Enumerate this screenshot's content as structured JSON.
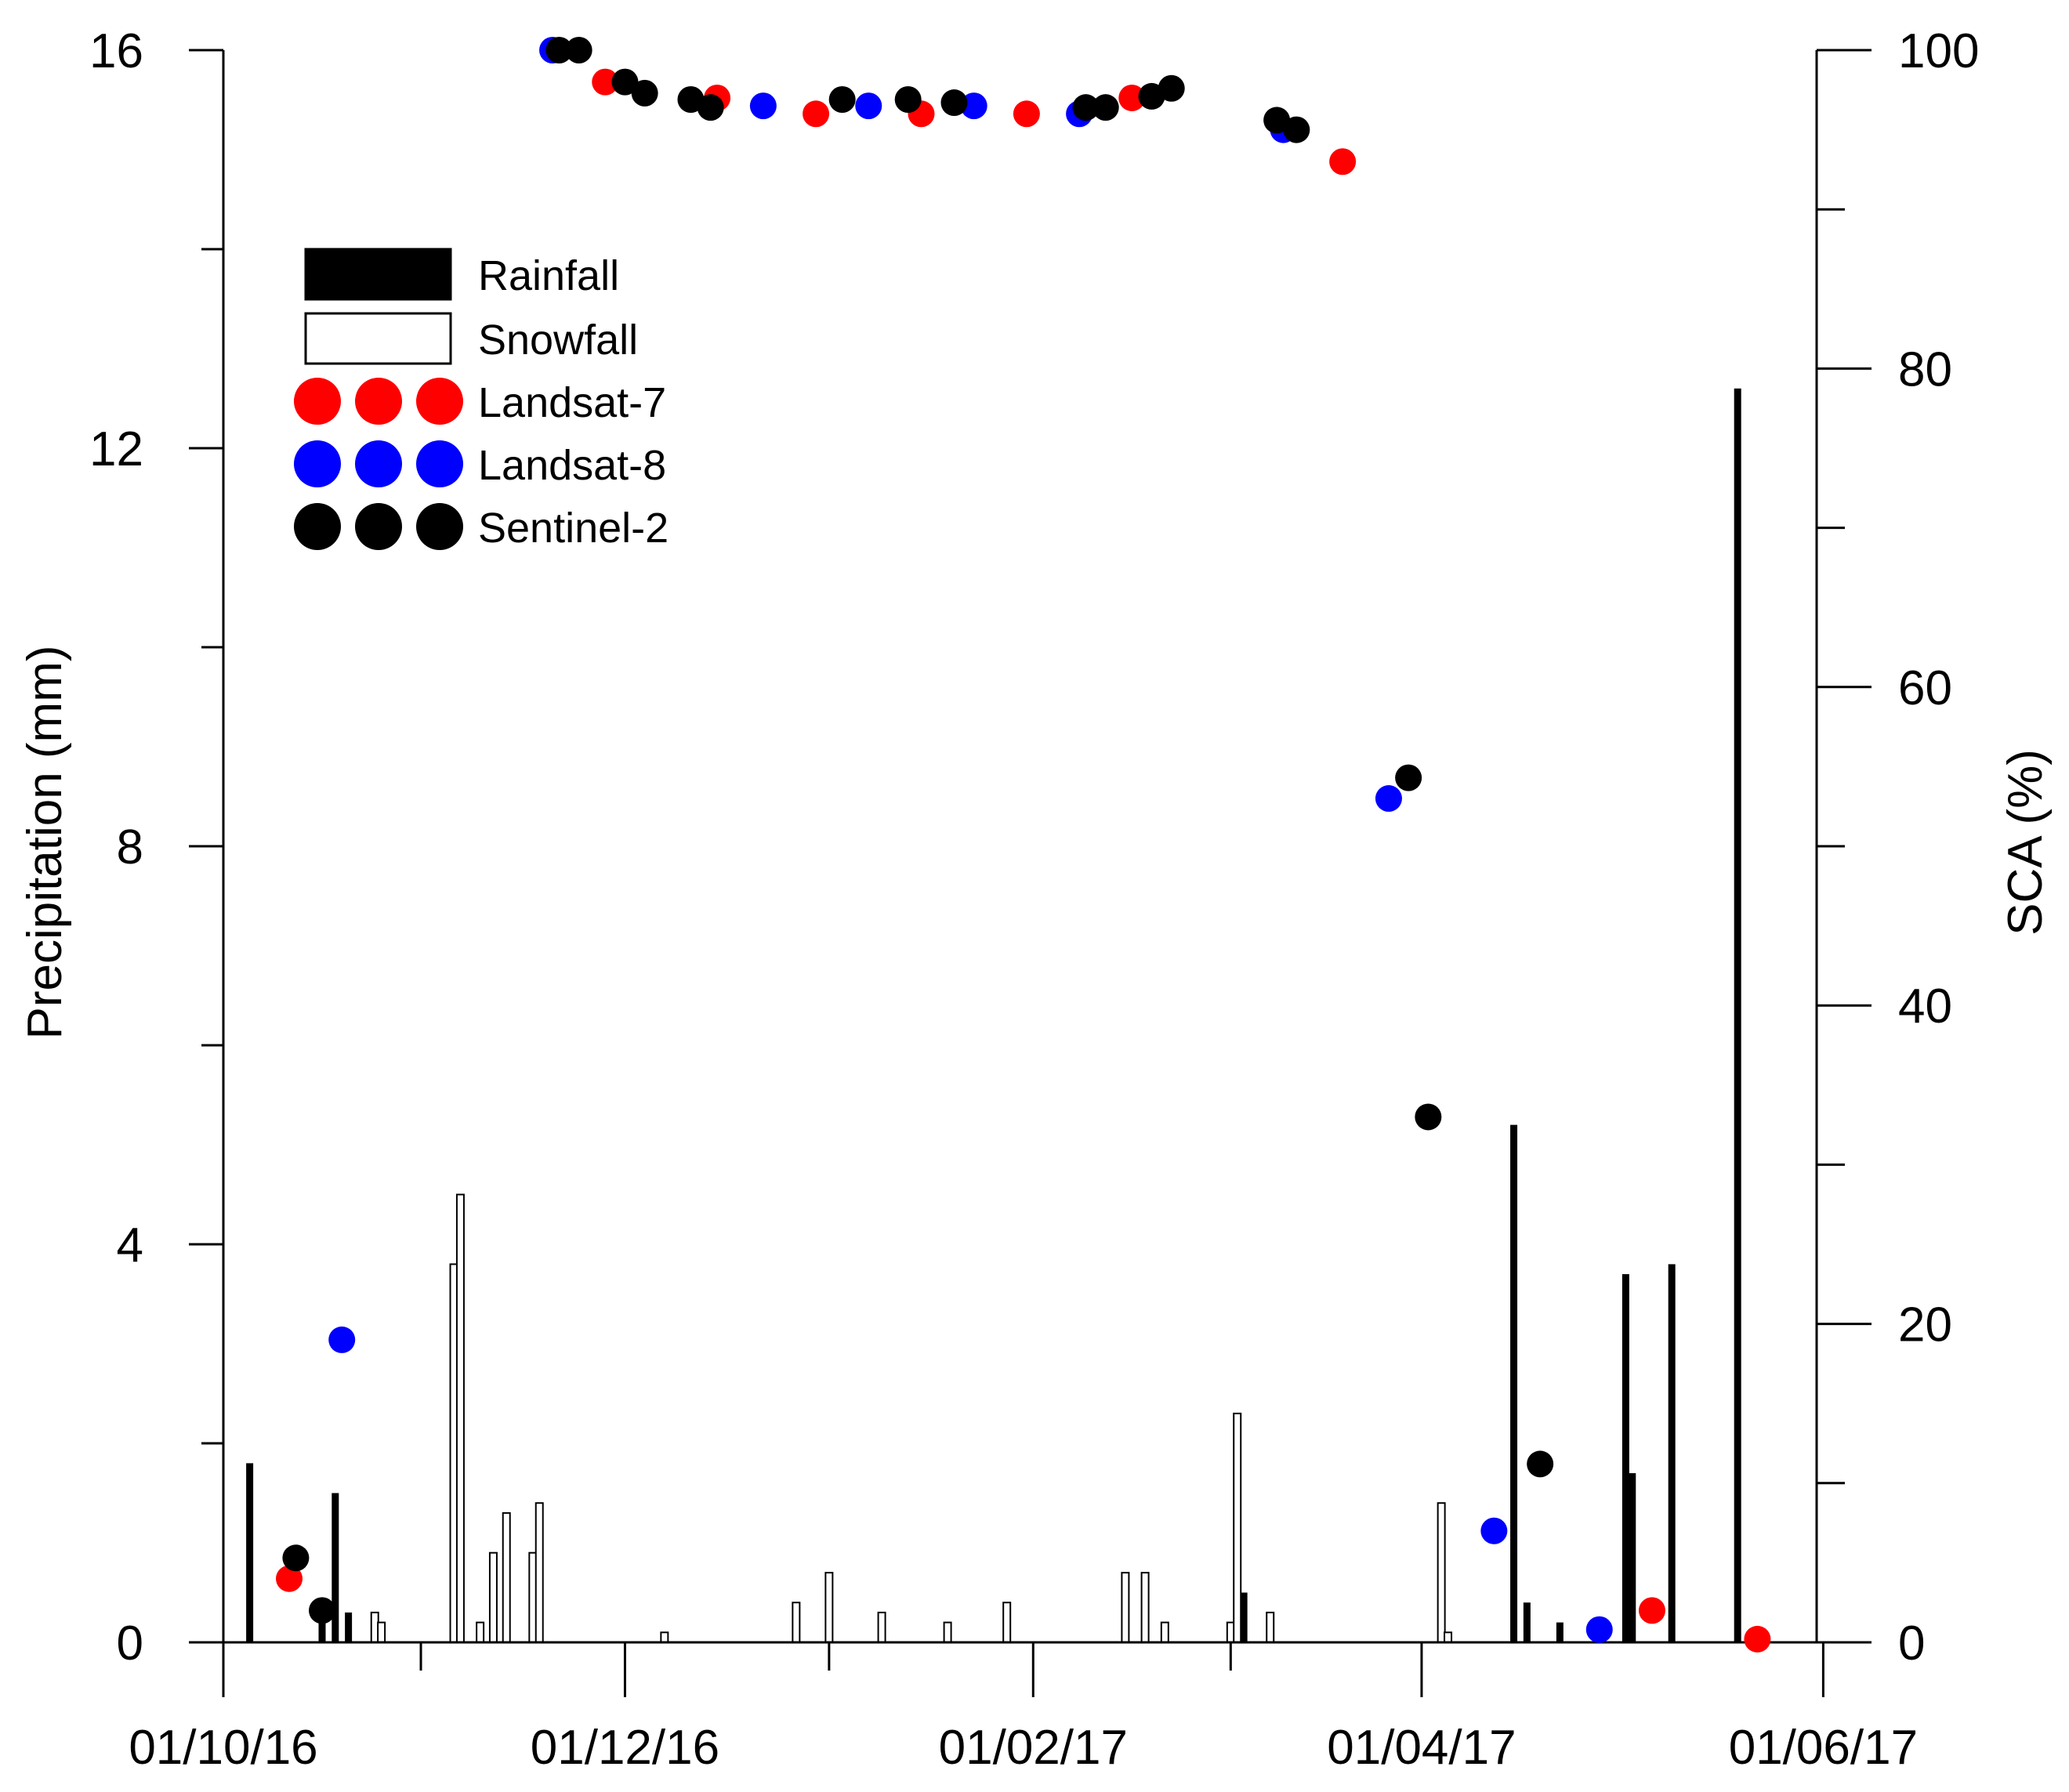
{
  "chart_data": {
    "type": "bar+scatter",
    "xlabel": "",
    "ylabel_left": "Precipitation (mm)",
    "ylabel_right": "SCA (%)",
    "x_axis": {
      "unit": "days since 01/10/16",
      "range": [
        0,
        242
      ],
      "tick_labels": [
        {
          "label": "01/10/16",
          "day": 0
        },
        {
          "label": "01/12/16",
          "day": 61
        },
        {
          "label": "01/02/17",
          "day": 123
        },
        {
          "label": "01/04/17",
          "day": 182
        },
        {
          "label": "01/06/17",
          "day": 243
        }
      ],
      "minor_ticks": [
        30,
        92,
        153
      ]
    },
    "y_left": {
      "range": [
        0,
        16
      ],
      "ticks": [
        0,
        4,
        8,
        12,
        16
      ],
      "minor_ticks": [
        2,
        6,
        10,
        14
      ]
    },
    "y_right": {
      "range": [
        0,
        100
      ],
      "ticks": [
        0,
        20,
        40,
        60,
        80,
        100
      ],
      "minor_ticks": [
        10,
        30,
        50,
        70,
        90
      ]
    },
    "legend": {
      "position": "top-left",
      "entries": [
        {
          "label": "Rainfall",
          "kind": "bar",
          "color": "#000000"
        },
        {
          "label": "Snowfall",
          "kind": "bar",
          "color": "#ffffff"
        },
        {
          "label": "Landsat-7",
          "kind": "marker",
          "color": "#ff0000"
        },
        {
          "label": "Landsat-8",
          "kind": "marker",
          "color": "#0000ff"
        },
        {
          "label": "Sentinel-2",
          "kind": "marker",
          "color": "#000000"
        }
      ]
    },
    "series": [
      {
        "name": "Rainfall",
        "axis": "left",
        "color": "#000000",
        "points": [
          {
            "day": 4,
            "value": 1.8
          },
          {
            "day": 15,
            "value": 0.2
          },
          {
            "day": 17,
            "value": 1.5
          },
          {
            "day": 19,
            "value": 0.3
          },
          {
            "day": 155,
            "value": 0.5
          },
          {
            "day": 196,
            "value": 5.2
          },
          {
            "day": 198,
            "value": 0.4
          },
          {
            "day": 203,
            "value": 0.2
          },
          {
            "day": 213,
            "value": 3.7
          },
          {
            "day": 214,
            "value": 1.7
          },
          {
            "day": 220,
            "value": 3.8
          },
          {
            "day": 230,
            "value": 12.6
          }
        ]
      },
      {
        "name": "Snowfall",
        "axis": "left",
        "color": "#ffffff",
        "points": [
          {
            "day": 23,
            "value": 0.3
          },
          {
            "day": 24,
            "value": 0.2
          },
          {
            "day": 35,
            "value": 3.8
          },
          {
            "day": 36,
            "value": 4.5
          },
          {
            "day": 39,
            "value": 0.2
          },
          {
            "day": 41,
            "value": 0.9
          },
          {
            "day": 43,
            "value": 1.3
          },
          {
            "day": 47,
            "value": 0.9
          },
          {
            "day": 48,
            "value": 1.4
          },
          {
            "day": 67,
            "value": 0.1
          },
          {
            "day": 87,
            "value": 0.4
          },
          {
            "day": 92,
            "value": 0.7
          },
          {
            "day": 100,
            "value": 0.3
          },
          {
            "day": 110,
            "value": 0.2
          },
          {
            "day": 119,
            "value": 0.4
          },
          {
            "day": 137,
            "value": 0.7
          },
          {
            "day": 140,
            "value": 0.7
          },
          {
            "day": 143,
            "value": 0.2
          },
          {
            "day": 153,
            "value": 0.2
          },
          {
            "day": 154,
            "value": 2.3
          },
          {
            "day": 159,
            "value": 0.3
          },
          {
            "day": 185,
            "value": 1.4
          },
          {
            "day": 186,
            "value": 0.1
          }
        ]
      },
      {
        "name": "Landsat-7",
        "axis": "right",
        "color": "#ff0000",
        "points": [
          {
            "day": 10,
            "value": 4
          },
          {
            "day": 58,
            "value": 98
          },
          {
            "day": 75,
            "value": 97
          },
          {
            "day": 90,
            "value": 96
          },
          {
            "day": 106,
            "value": 96
          },
          {
            "day": 122,
            "value": 96
          },
          {
            "day": 138,
            "value": 97
          },
          {
            "day": 170,
            "value": 93
          },
          {
            "day": 217,
            "value": 2
          },
          {
            "day": 233,
            "value": 0.2
          }
        ]
      },
      {
        "name": "Landsat-8",
        "axis": "right",
        "color": "#0000ff",
        "points": [
          {
            "day": 18,
            "value": 19
          },
          {
            "day": 50,
            "value": 100
          },
          {
            "day": 82,
            "value": 96.5
          },
          {
            "day": 98,
            "value": 96.5
          },
          {
            "day": 114,
            "value": 96.5
          },
          {
            "day": 130,
            "value": 96
          },
          {
            "day": 161,
            "value": 95
          },
          {
            "day": 177,
            "value": 53
          },
          {
            "day": 193,
            "value": 7
          },
          {
            "day": 209,
            "value": 0.8
          }
        ]
      },
      {
        "name": "Sentinel-2",
        "axis": "right",
        "color": "#000000",
        "points": [
          {
            "day": 11,
            "value": 5.3
          },
          {
            "day": 15,
            "value": 2
          },
          {
            "day": 51,
            "value": 100
          },
          {
            "day": 54,
            "value": 100
          },
          {
            "day": 61,
            "value": 98
          },
          {
            "day": 64,
            "value": 97.3
          },
          {
            "day": 71,
            "value": 96.9
          },
          {
            "day": 74,
            "value": 96.4
          },
          {
            "day": 94,
            "value": 96.9
          },
          {
            "day": 104,
            "value": 96.9
          },
          {
            "day": 111,
            "value": 96.7
          },
          {
            "day": 131,
            "value": 96.4
          },
          {
            "day": 134,
            "value": 96.4
          },
          {
            "day": 141,
            "value": 97.1
          },
          {
            "day": 144,
            "value": 97.6
          },
          {
            "day": 160,
            "value": 95.6
          },
          {
            "day": 163,
            "value": 95
          },
          {
            "day": 180,
            "value": 54.3
          },
          {
            "day": 183,
            "value": 33
          },
          {
            "day": 200,
            "value": 11.2
          }
        ]
      }
    ]
  }
}
